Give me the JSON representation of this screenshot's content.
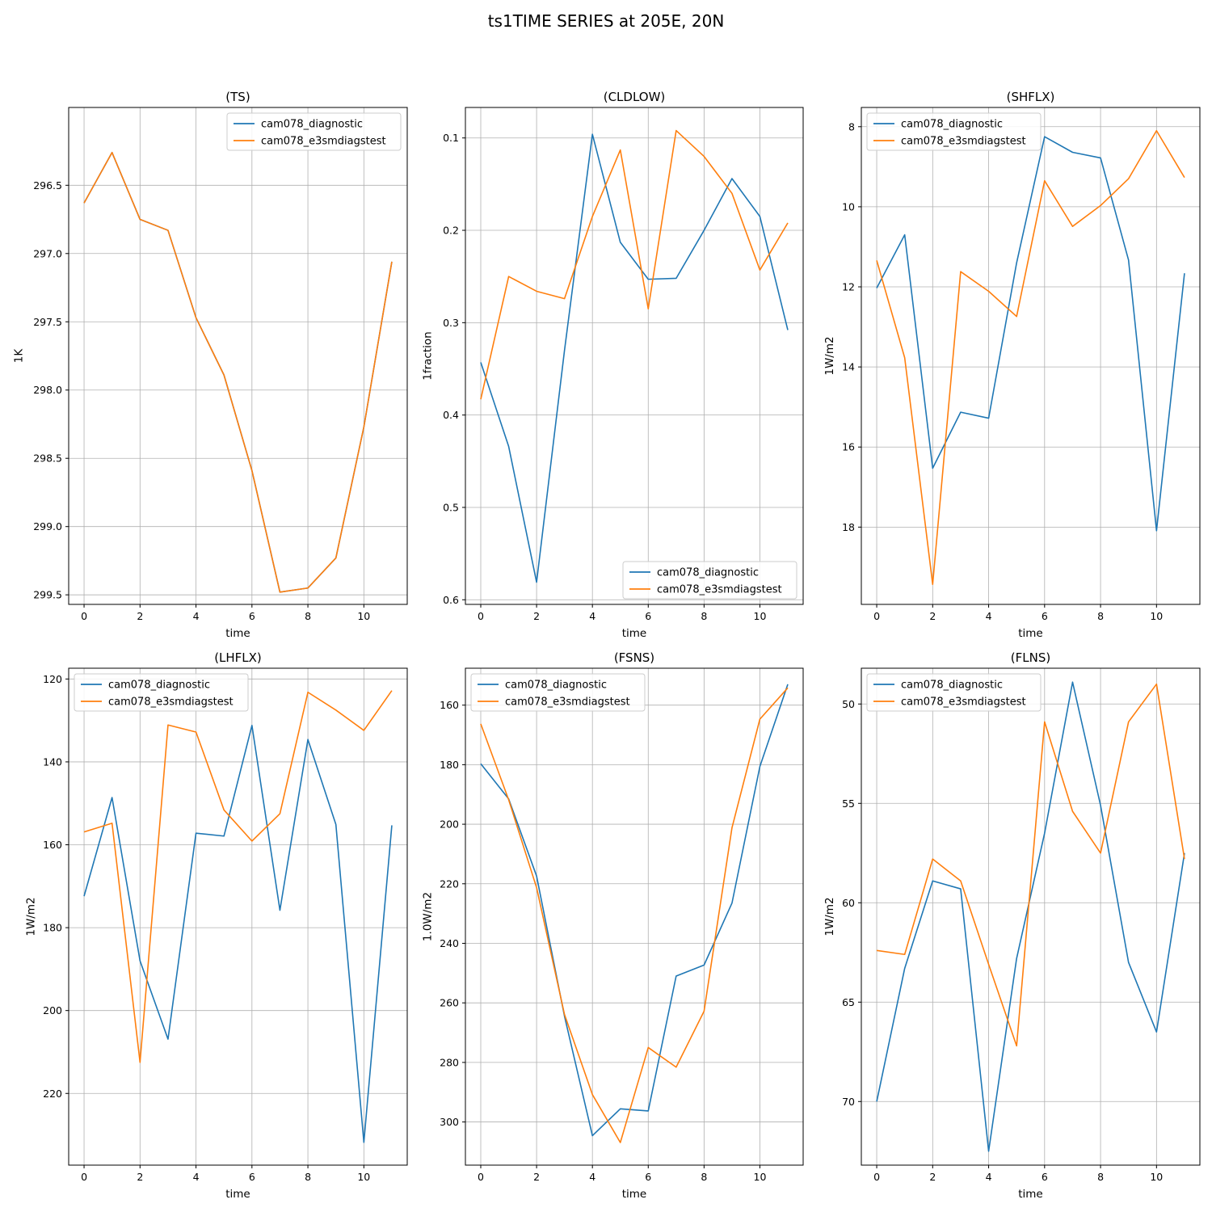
{
  "figure": {
    "title": "ts1TIME SERIES at 205E, 20N",
    "series_colors": [
      "#1f77b4",
      "#ff7f0e"
    ],
    "grid": true
  },
  "chart_data": [
    {
      "type": "line",
      "title": "(TS)",
      "xlabel": "time",
      "ylabel": "1K",
      "x": [
        0,
        1,
        2,
        3,
        4,
        5,
        6,
        7,
        8,
        9,
        10,
        11
      ],
      "xlim": [
        -0.55,
        11.55
      ],
      "ylim": [
        299.57,
        295.93
      ],
      "y_inverted": true,
      "xticks": [
        0,
        2,
        4,
        6,
        8,
        10
      ],
      "yticks": [
        296.5,
        297.0,
        297.5,
        298.0,
        298.5,
        299.0,
        299.5
      ],
      "ytick_labels": [
        "296.5",
        "297.0",
        "297.5",
        "298.0",
        "298.5",
        "299.0",
        "299.5"
      ],
      "legend": "upper right",
      "series": [
        {
          "name": "cam078_diagnostic",
          "values": [
            296.63,
            296.26,
            296.75,
            296.83,
            297.47,
            297.89,
            298.59,
            299.48,
            299.45,
            299.23,
            298.27,
            297.06
          ]
        },
        {
          "name": "cam078_e3smdiagstest",
          "values": [
            296.63,
            296.26,
            296.75,
            296.83,
            297.47,
            297.89,
            298.59,
            299.48,
            299.45,
            299.23,
            298.27,
            297.06
          ]
        }
      ]
    },
    {
      "type": "line",
      "title": "(CLDLOW)",
      "xlabel": "time",
      "ylabel": "1fraction",
      "x": [
        0,
        1,
        2,
        3,
        4,
        5,
        6,
        7,
        8,
        9,
        10,
        11
      ],
      "xlim": [
        -0.55,
        11.55
      ],
      "ylim": [
        0.605,
        0.067
      ],
      "y_inverted": true,
      "xticks": [
        0,
        2,
        4,
        6,
        8,
        10
      ],
      "yticks": [
        0.1,
        0.2,
        0.3,
        0.4,
        0.5,
        0.6
      ],
      "ytick_labels": [
        "0.1",
        "0.2",
        "0.3",
        "0.4",
        "0.5",
        "0.6"
      ],
      "legend": "lower right",
      "series": [
        {
          "name": "cam078_diagnostic",
          "values": [
            0.343,
            0.434,
            0.581,
            0.33,
            0.096,
            0.213,
            0.253,
            0.252,
            0.2,
            0.144,
            0.185,
            0.308
          ]
        },
        {
          "name": "cam078_e3smdiagstest",
          "values": [
            0.383,
            0.25,
            0.266,
            0.274,
            0.185,
            0.113,
            0.285,
            0.092,
            0.12,
            0.16,
            0.243,
            0.192
          ]
        }
      ]
    },
    {
      "type": "line",
      "title": "(SHFLX)",
      "xlabel": "time",
      "ylabel": "1W/m2",
      "x": [
        0,
        1,
        2,
        3,
        4,
        5,
        6,
        7,
        8,
        9,
        10,
        11
      ],
      "xlim": [
        -0.55,
        11.55
      ],
      "ylim": [
        19.93,
        7.52
      ],
      "y_inverted": true,
      "xticks": [
        0,
        2,
        4,
        6,
        8,
        10
      ],
      "yticks": [
        8,
        10,
        12,
        14,
        16,
        18
      ],
      "ytick_labels": [
        "8",
        "10",
        "12",
        "14",
        "16",
        "18"
      ],
      "legend": "upper left",
      "series": [
        {
          "name": "cam078_diagnostic",
          "values": [
            12.03,
            10.7,
            16.53,
            15.13,
            15.28,
            11.4,
            8.25,
            8.64,
            8.78,
            11.33,
            18.09,
            11.66
          ]
        },
        {
          "name": "cam078_e3smdiagstest",
          "values": [
            11.34,
            13.77,
            19.43,
            11.62,
            12.11,
            12.74,
            9.35,
            10.49,
            9.97,
            9.3,
            8.1,
            9.27
          ]
        }
      ]
    },
    {
      "type": "line",
      "title": "(LHFLX)",
      "xlabel": "time",
      "ylabel": "1W/m2",
      "x": [
        0,
        1,
        2,
        3,
        4,
        5,
        6,
        7,
        8,
        9,
        10,
        11
      ],
      "xlim": [
        -0.55,
        11.55
      ],
      "ylim": [
        237.3,
        117.4
      ],
      "y_inverted": true,
      "xticks": [
        0,
        2,
        4,
        6,
        8,
        10
      ],
      "yticks": [
        120,
        140,
        160,
        180,
        200,
        220
      ],
      "ytick_labels": [
        "120",
        "140",
        "160",
        "180",
        "200",
        "220"
      ],
      "legend": "upper left",
      "series": [
        {
          "name": "cam078_diagnostic",
          "values": [
            172.4,
            148.6,
            188,
            206.9,
            157.2,
            157.9,
            131.2,
            175.8,
            134.6,
            155.1,
            231.8,
            155.3
          ]
        },
        {
          "name": "cam078_e3smdiagstest",
          "values": [
            156.9,
            154.8,
            212.5,
            131.1,
            132.8,
            151.6,
            159.1,
            152.5,
            123.2,
            127.5,
            132.4,
            122.8
          ]
        }
      ]
    },
    {
      "type": "line",
      "title": "(FSNS)",
      "xlabel": "time",
      "ylabel": "1.0W/m2",
      "x": [
        0,
        1,
        2,
        3,
        4,
        5,
        6,
        7,
        8,
        9,
        10,
        11
      ],
      "xlim": [
        -0.55,
        11.55
      ],
      "ylim": [
        314.5,
        147.6
      ],
      "y_inverted": true,
      "xticks": [
        0,
        2,
        4,
        6,
        8,
        10
      ],
      "yticks": [
        160,
        180,
        200,
        220,
        240,
        260,
        280,
        300
      ],
      "ytick_labels": [
        "160",
        "180",
        "200",
        "220",
        "240",
        "260",
        "280",
        "300"
      ],
      "legend": "upper left",
      "series": [
        {
          "name": "cam078_diagnostic",
          "values": [
            179.7,
            191.5,
            217.4,
            264.5,
            304.6,
            295.6,
            296.3,
            251,
            247.3,
            226.5,
            180.6,
            153
          ]
        },
        {
          "name": "cam078_e3smdiagstest",
          "values": [
            166.3,
            191.8,
            221.3,
            263.9,
            290.8,
            306.9,
            275,
            281.6,
            262.8,
            201.2,
            164.7,
            154.2
          ]
        }
      ]
    },
    {
      "type": "line",
      "title": "(FLNS)",
      "xlabel": "time",
      "ylabel": "1W/m2",
      "x": [
        0,
        1,
        2,
        3,
        4,
        5,
        6,
        7,
        8,
        9,
        10,
        11
      ],
      "xlim": [
        -0.55,
        11.55
      ],
      "ylim": [
        73.2,
        48.2
      ],
      "y_inverted": true,
      "xticks": [
        0,
        2,
        4,
        6,
        8,
        10
      ],
      "yticks": [
        50,
        55,
        60,
        65,
        70
      ],
      "ytick_labels": [
        "50",
        "55",
        "60",
        "65",
        "70"
      ],
      "legend": "upper left",
      "series": [
        {
          "name": "cam078_diagnostic",
          "values": [
            70,
            63.3,
            58.9,
            59.3,
            72.5,
            62.8,
            56.5,
            48.9,
            55.1,
            63,
            66.5,
            57.5
          ]
        },
        {
          "name": "cam078_e3smdiagstest",
          "values": [
            62.4,
            62.6,
            57.8,
            58.9,
            63.1,
            67.2,
            50.9,
            55.4,
            57.5,
            50.9,
            49,
            57.8
          ]
        }
      ]
    }
  ]
}
